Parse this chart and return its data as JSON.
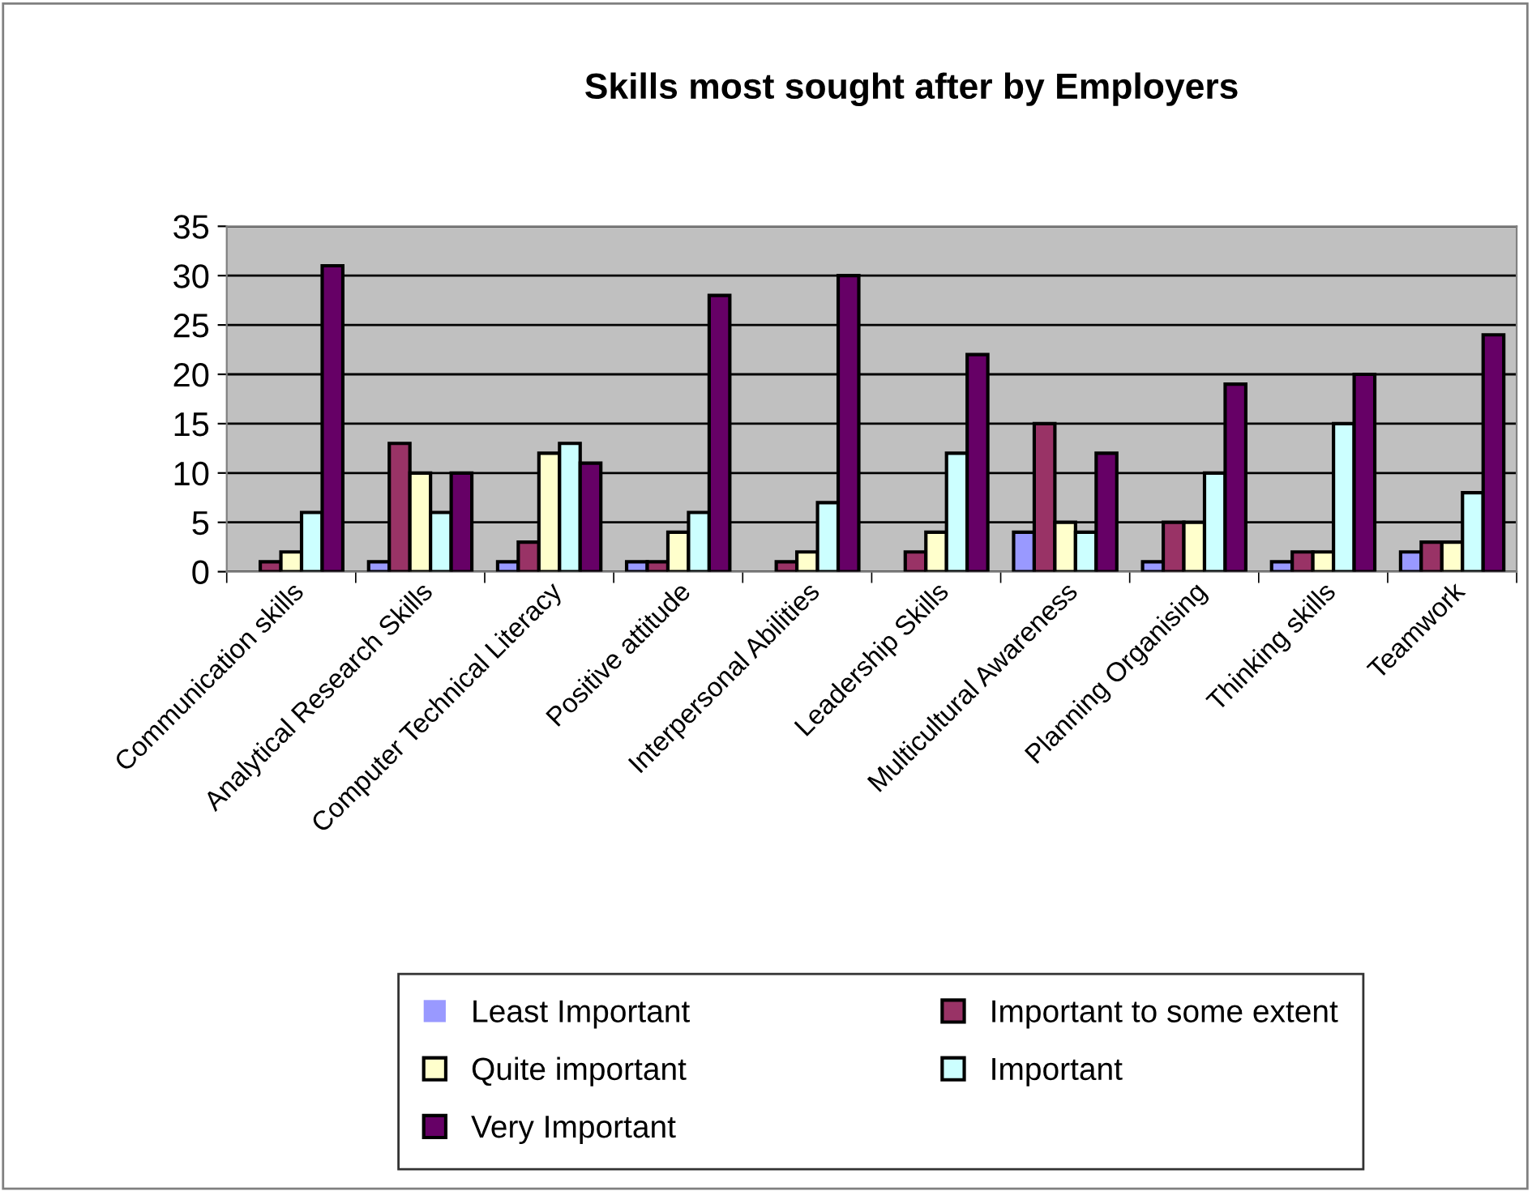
{
  "chart_data": {
    "type": "bar",
    "title": "Skills most sought after by Employers",
    "categories": [
      "Communication skills",
      "Analytical Research Skills",
      "Computer Technical Literacy",
      "Positive attitude",
      "Interpersonal Abilities",
      "Leadership Skills",
      "Multicultural Awareness",
      "Planning Organising",
      "Thinking skills",
      "Teamwork"
    ],
    "series": [
      {
        "name": "Least Important",
        "color": "#9999ff",
        "values": [
          0,
          1,
          1,
          1,
          0,
          0,
          4,
          1,
          1,
          2
        ]
      },
      {
        "name": "Important to some extent",
        "color": "#993366",
        "values": [
          1,
          13,
          3,
          1,
          1,
          2,
          15,
          5,
          2,
          3
        ]
      },
      {
        "name": "Quite important",
        "color": "#ffffcc",
        "values": [
          2,
          10,
          12,
          4,
          2,
          4,
          5,
          5,
          2,
          3
        ]
      },
      {
        "name": "Important",
        "color": "#ccffff",
        "values": [
          6,
          6,
          13,
          6,
          7,
          12,
          4,
          10,
          15,
          8
        ]
      },
      {
        "name": "Very Important",
        "color": "#660066",
        "values": [
          31,
          10,
          11,
          28,
          30,
          22,
          12,
          19,
          20,
          24
        ]
      }
    ],
    "ylim": [
      0,
      35
    ],
    "yticks": [
      0,
      5,
      10,
      15,
      20,
      25,
      30,
      35
    ],
    "grid": "y",
    "legend": "bottom"
  }
}
